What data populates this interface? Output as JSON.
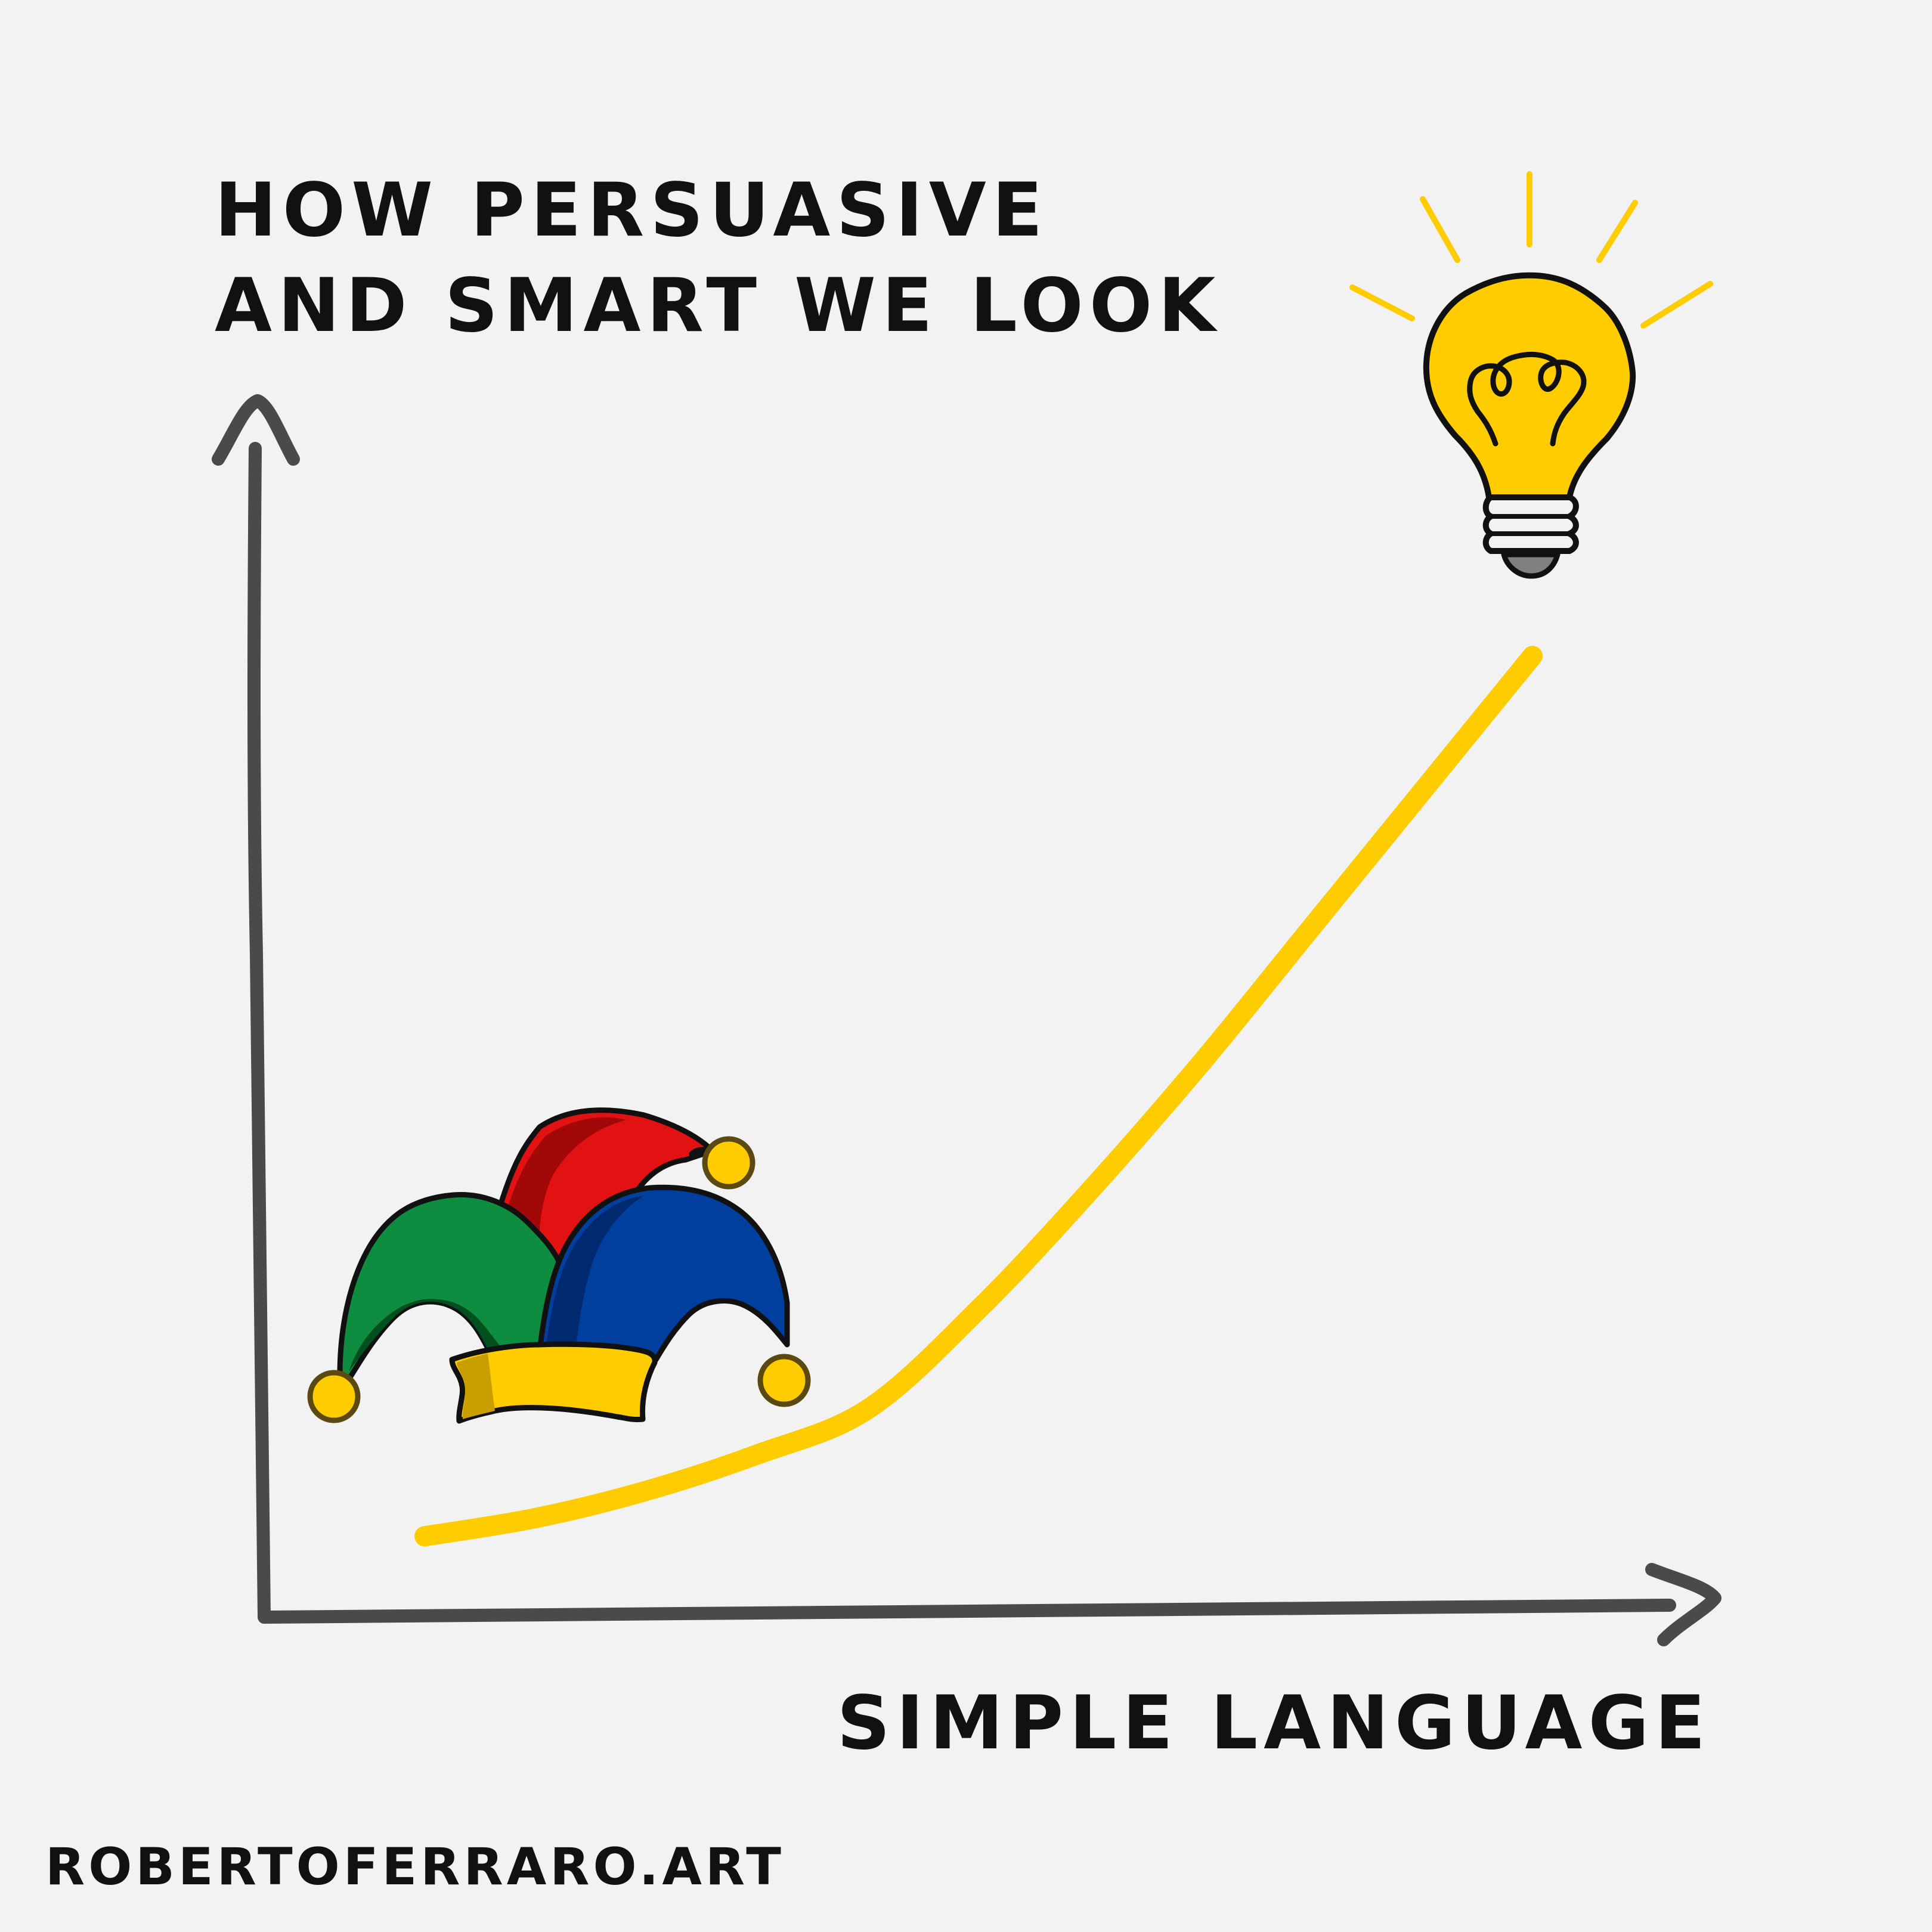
{
  "chart_data": {
    "type": "line",
    "title": "",
    "ylabel": [
      "HOW PERSUASIVE",
      "AND SMART WE LOOK"
    ],
    "xlabel": "SIMPLE LANGUAGE",
    "x": [
      0,
      0.1,
      0.2,
      0.3,
      0.4,
      0.5,
      0.6,
      0.7,
      0.8,
      0.9,
      1.0
    ],
    "series": [
      {
        "values": [
          0.03,
          0.05,
          0.08,
          0.12,
          0.17,
          0.28,
          0.41,
          0.55,
          0.7,
          0.85,
          1.0
        ]
      }
    ],
    "xlim": [
      0,
      1
    ],
    "ylim": [
      0,
      1
    ],
    "grid": false,
    "ticks": false,
    "line_color": "#FFCC00",
    "axis_color": "#4a4a4a",
    "low_end_icon": "jester-hat-icon",
    "high_end_icon": "lightbulb-icon"
  },
  "credit": "ROBERTOFERRARO.ART",
  "colors": {
    "background": "#f2f2f2",
    "ink": "#111111",
    "yellow": "#FFCC00",
    "hat_green": "#0E8C3F",
    "hat_red": "#E31212",
    "hat_blue": "#003F9E"
  }
}
